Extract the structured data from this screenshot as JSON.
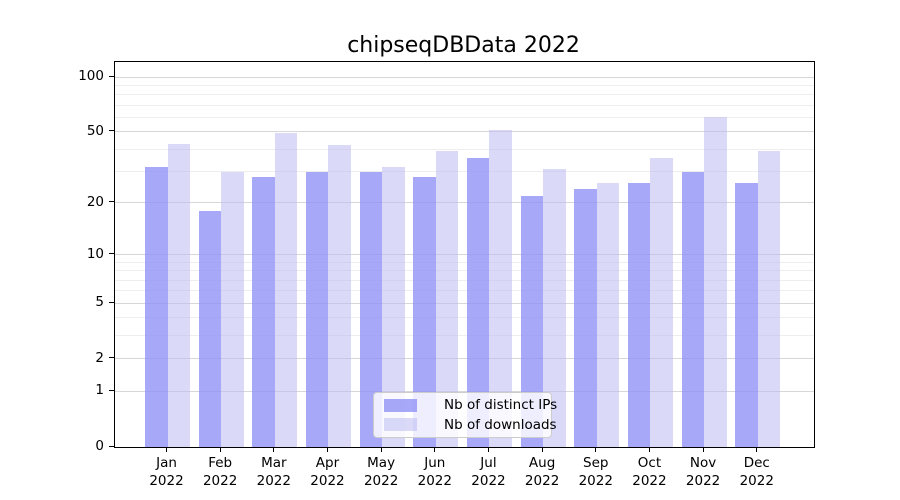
{
  "chart_data": {
    "type": "bar",
    "title": "chipseqDBData 2022",
    "categories": [
      "Jan 2022",
      "Feb 2022",
      "Mar 2022",
      "Apr 2022",
      "May 2022",
      "Jun 2022",
      "Jul 2022",
      "Aug 2022",
      "Sep 2022",
      "Oct 2022",
      "Nov 2022",
      "Dec 2022"
    ],
    "series": [
      {
        "name": "Nb of distinct IPs",
        "values": [
          32,
          18,
          28,
          30,
          30,
          28,
          36,
          22,
          24,
          26,
          30,
          26
        ],
        "color_hex_on_white": "#a8a8f8",
        "color_rgba": "rgba(146,146,246,0.8)"
      },
      {
        "name": "Nb of downloads",
        "values": [
          43,
          30,
          49,
          42,
          32,
          39,
          51,
          31,
          26,
          36,
          60,
          39
        ],
        "color_hex_on_white": "#d9d9f8",
        "color_rgba": "rgba(188,188,243,0.55)"
      }
    ],
    "xlabel": "",
    "ylabel": "",
    "yscale": "log(1+x)",
    "ylim": [
      0,
      121
    ],
    "yticks": [
      0,
      1,
      2,
      5,
      10,
      20,
      50,
      100
    ],
    "minor_gridlines": [
      3,
      4,
      6,
      7,
      8,
      9,
      30,
      40,
      60,
      70,
      80,
      90
    ],
    "grid": true,
    "legend_position": "lower center",
    "colors": {
      "axis": "#000000",
      "major_grid": "#d7d7d7",
      "minor_grid": "#eeeeee",
      "legend_border": "#cccccc"
    }
  }
}
